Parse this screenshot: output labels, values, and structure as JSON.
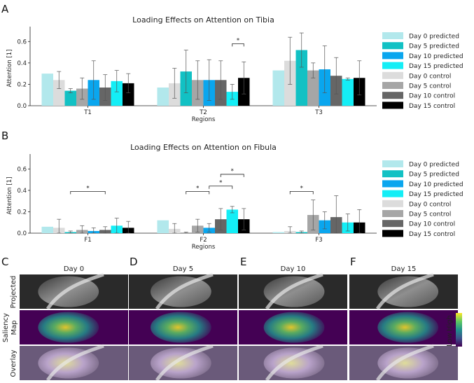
{
  "panels": {
    "A": "A",
    "B": "B",
    "C": "C",
    "D": "D",
    "E": "E",
    "F": "F"
  },
  "legend": [
    {
      "label": "Day 0 predicted",
      "color": "#b2e8ec"
    },
    {
      "label": "Day 5 predicted",
      "color": "#12c1c4"
    },
    {
      "label": "Day 10 predicted",
      "color": "#0aa6ee"
    },
    {
      "label": "Day 15 predicted",
      "color": "#14eef6"
    },
    {
      "label": "Day 0 control",
      "color": "#dcdcdc"
    },
    {
      "label": "Day 5 control",
      "color": "#a6a6a6"
    },
    {
      "label": "Day 10 control",
      "color": "#666666"
    },
    {
      "label": "Day 15 control",
      "color": "#000000"
    }
  ],
  "chart_data": [
    {
      "type": "bar",
      "title": "Loading Effects on Attention on Tibia",
      "xlabel": "Regions",
      "ylabel": "Attention [1]",
      "ylim": [
        0,
        0.7
      ],
      "yticks": [
        "0.0",
        "0.2",
        "0.4",
        "0.6"
      ],
      "categories": [
        "T1",
        "T2",
        "T3"
      ],
      "series_order": [
        "Day 0 predicted",
        "Day 0 control",
        "Day 5 predicted",
        "Day 5 control",
        "Day 10 predicted",
        "Day 10 control",
        "Day 15 predicted",
        "Day 15 control"
      ],
      "values": [
        [
          0.3,
          0.24,
          0.14,
          0.16,
          0.24,
          0.17,
          0.23,
          0.21
        ],
        [
          0.17,
          0.21,
          0.32,
          0.24,
          0.24,
          0.24,
          0.13,
          0.26
        ],
        [
          0.33,
          0.42,
          0.52,
          0.33,
          0.34,
          0.28,
          0.25,
          0.26
        ]
      ],
      "errors": [
        [
          0,
          0.08,
          0.02,
          0.1,
          0.18,
          0.12,
          0.1,
          0.09
        ],
        [
          0,
          0.14,
          0.2,
          0.18,
          0.19,
          0.18,
          0.07,
          0.15
        ],
        [
          0,
          0.22,
          0.16,
          0.07,
          0.22,
          0.17,
          0.01,
          0.16
        ]
      ],
      "significance": [
        {
          "region": 1,
          "from": 6,
          "to": 7,
          "y": 0.58,
          "label": "*"
        }
      ],
      "legend_position": "right"
    },
    {
      "type": "bar",
      "title": "Loading Effects on Attention on Fibula",
      "xlabel": "Regions",
      "ylabel": "Attention [1]",
      "ylim": [
        0,
        0.7
      ],
      "yticks": [
        "0.0",
        "0.2",
        "0.4",
        "0.6"
      ],
      "categories": [
        "F1",
        "F2",
        "F3"
      ],
      "series_order": [
        "Day 0 predicted",
        "Day 0 control",
        "Day 5 predicted",
        "Day 5 control",
        "Day 10 predicted",
        "Day 10 control",
        "Day 15 predicted",
        "Day 15 control"
      ],
      "values": [
        [
          0.06,
          0.05,
          0.01,
          0.03,
          0.02,
          0.03,
          0.07,
          0.05
        ],
        [
          0.12,
          0.04,
          0.0,
          0.07,
          0.05,
          0.13,
          0.22,
          0.13
        ],
        [
          0.01,
          0.02,
          0.01,
          0.17,
          0.12,
          0.15,
          0.1,
          0.1
        ]
      ],
      "errors": [
        [
          0,
          0.08,
          0.01,
          0.04,
          0.03,
          0.03,
          0.07,
          0.06
        ],
        [
          0,
          0.05,
          0.01,
          0.06,
          0.04,
          0.1,
          0.03,
          0.1
        ],
        [
          0,
          0.04,
          0.01,
          0.14,
          0.08,
          0.2,
          0.08,
          0.12
        ]
      ],
      "significance": [
        {
          "region": 0,
          "from": 2,
          "to": 5,
          "y": 0.39,
          "label": "*"
        },
        {
          "region": 1,
          "from": 2,
          "to": 4,
          "y": 0.39,
          "label": "*"
        },
        {
          "region": 1,
          "from": 4,
          "to": 6,
          "y": 0.44,
          "label": "*"
        },
        {
          "region": 1,
          "from": 5,
          "to": 7,
          "y": 0.55,
          "label": "*"
        },
        {
          "region": 2,
          "from": 1,
          "to": 3,
          "y": 0.39,
          "label": "*"
        }
      ],
      "legend_position": "right"
    }
  ],
  "image_grid": {
    "days": [
      "Day 0",
      "Day 5",
      "Day 10",
      "Day 15"
    ],
    "rows": [
      "Projected",
      "Saliency Map",
      "Overlay"
    ],
    "colorbar": {
      "low": "Low",
      "high": "High"
    }
  }
}
